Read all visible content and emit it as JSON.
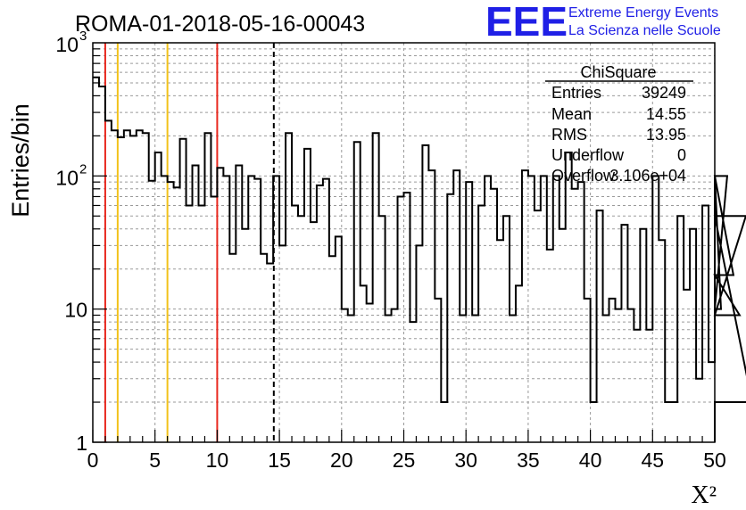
{
  "header": {
    "run_title": "ROMA-01-2018-05-16-00043",
    "logo_letters": "EEE",
    "logo_line1": "Extreme Energy Events",
    "logo_line2": "La Scienza nelle Scuole"
  },
  "colors": {
    "logo_blue": "#1f1fe6",
    "red_line": "#e8281e",
    "yellow_line": "#f2c21a",
    "histogram": "#000000",
    "grid": "#9a9a9a"
  },
  "stats_box": {
    "title": "ChiSquare",
    "rows": [
      {
        "label": "Entries",
        "value": "39249"
      },
      {
        "label": "Mean",
        "value": "14.55"
      },
      {
        "label": "RMS",
        "value": "13.95"
      },
      {
        "label": "Underflow",
        "value": "0"
      },
      {
        "label": "Overflow",
        "value": "3.106e+04"
      }
    ]
  },
  "chart_data": {
    "type": "bar",
    "style": "step histogram",
    "xlabel": "X²",
    "ylabel": "Entries/bin",
    "xlim": [
      0,
      50
    ],
    "ylim": [
      1,
      1000
    ],
    "y_scale": "log",
    "grid": true,
    "x_ticks": [
      "0",
      "5",
      "10",
      "15",
      "20",
      "25",
      "30",
      "35",
      "40",
      "45",
      "50"
    ],
    "y_ticks": [
      {
        "value": 1,
        "label": "1"
      },
      {
        "value": 10,
        "label": "10"
      },
      {
        "value": 100,
        "label": "10",
        "exponent": "2"
      },
      {
        "value": 1000,
        "label": "10",
        "exponent": "3"
      }
    ],
    "bin_width": 0.5,
    "values": [
      550,
      470,
      260,
      220,
      195,
      220,
      200,
      220,
      210,
      92,
      150,
      100,
      90,
      82,
      190,
      60,
      120,
      60,
      210,
      70,
      115,
      100,
      26,
      120,
      40,
      100,
      95,
      26,
      22,
      100,
      30,
      210,
      60,
      50,
      160,
      45,
      85,
      95,
      25,
      35,
      10,
      9,
      180,
      15,
      11,
      210,
      50,
      9,
      10,
      70,
      75,
      8,
      30,
      170,
      110,
      12,
      2,
      73,
      110,
      9,
      90,
      9,
      60,
      100,
      80,
      33,
      50,
      9,
      15,
      110,
      100,
      55,
      100,
      28,
      100,
      40,
      150,
      80,
      90,
      12,
      2,
      55,
      9,
      12,
      10,
      43,
      10,
      7,
      40,
      7,
      100,
      33,
      2,
      2,
      50,
      14,
      40,
      3,
      60,
      4,
      100,
      10,
      100,
      18,
      9,
      50,
      2
    ],
    "reference_lines": [
      {
        "x": 1,
        "color": "red"
      },
      {
        "x": 2,
        "color": "yellow"
      },
      {
        "x": 6,
        "color": "yellow"
      },
      {
        "x": 10,
        "color": "red"
      },
      {
        "x": 14.55,
        "color": "black",
        "style": "dashed"
      }
    ]
  }
}
